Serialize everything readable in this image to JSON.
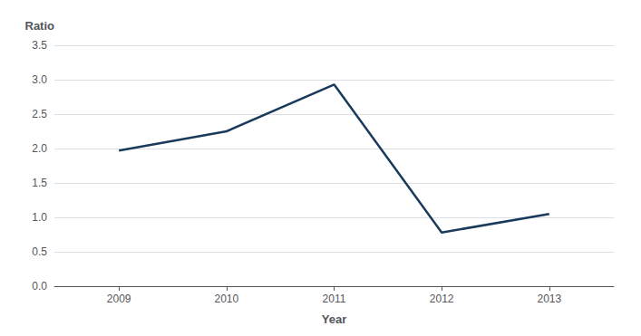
{
  "chart_data": {
    "type": "line",
    "x": [
      2009,
      2010,
      2011,
      2012,
      2013
    ],
    "values": [
      1.97,
      2.25,
      2.93,
      0.78,
      1.05
    ],
    "color": "#1a3a5c",
    "xlabel": "Year",
    "ylabel": "Ratio",
    "xlim": [
      2008.4,
      2013.6
    ],
    "xticks": [
      2009,
      2010,
      2011,
      2012,
      2013
    ],
    "ylim": [
      0.0,
      3.5
    ],
    "yticks": [
      {
        "value": 0,
        "label": "0.0"
      },
      0.5,
      {
        "value": 1,
        "label": "1.0"
      },
      1.5,
      {
        "value": 2,
        "label": "2.0"
      },
      2.5,
      {
        "value": 3,
        "label": "3.0"
      },
      3.5
    ],
    "grid": true
  }
}
